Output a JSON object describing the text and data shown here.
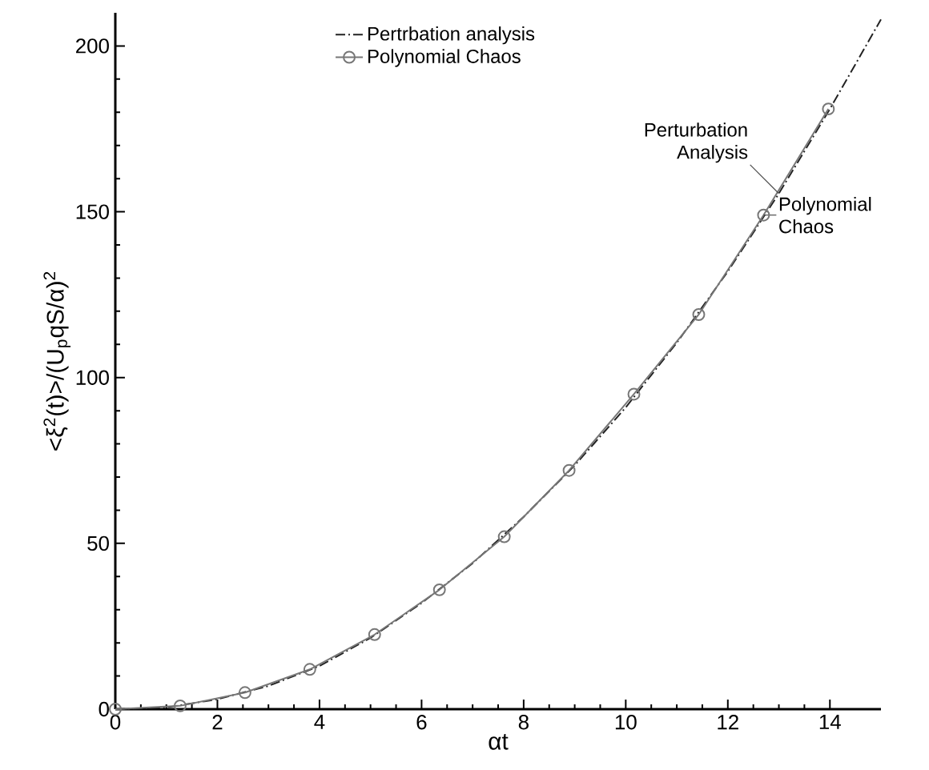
{
  "chart_data": {
    "type": "line",
    "xlabel": "αt",
    "ylabel": "<ξ$^{2}$(t)>/(U$_{p}$qS/α)$^{2}$",
    "xlim": [
      0,
      15
    ],
    "ylim": [
      0,
      210
    ],
    "xticks": [
      0,
      2,
      4,
      6,
      8,
      10,
      12,
      14
    ],
    "yticks": [
      0,
      50,
      100,
      150,
      200
    ],
    "grid": false,
    "legend": "top left",
    "series": [
      {
        "name": "Pertrbation analysis",
        "color": "#222222",
        "line_style": "dashdot",
        "marker": "none",
        "x": [
          0,
          1,
          2,
          3,
          4,
          5,
          6,
          7,
          8,
          9,
          10,
          11,
          12,
          13,
          14,
          15
        ],
        "values": [
          0,
          0.5,
          3,
          7,
          13,
          21.5,
          32,
          44,
          58,
          73.5,
          91,
          110.5,
          132,
          155.5,
          181,
          208
        ]
      },
      {
        "name": "Polynomial Chaos",
        "color": "#777777",
        "line_style": "solid",
        "marker": "circle",
        "x": [
          0,
          1.27,
          2.54,
          3.81,
          5.08,
          6.35,
          7.62,
          8.89,
          10.16,
          11.43,
          12.7,
          13.97
        ],
        "values": [
          0,
          1,
          5,
          12,
          22.5,
          36,
          52,
          72,
          95,
          119,
          149,
          181
        ]
      }
    ],
    "annotations": [
      {
        "text": "Perturbation Analysis",
        "x": 13,
        "y": 155.5
      },
      {
        "text": "Polynomial Chaos",
        "x": 12.7,
        "y": 149
      }
    ]
  }
}
